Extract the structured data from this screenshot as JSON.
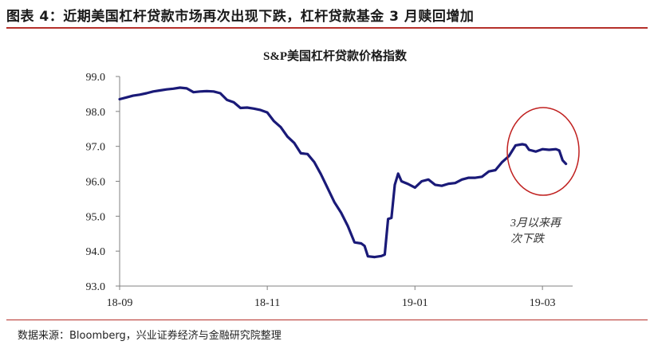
{
  "figure_title": "图表 4：近期美国杠杆贷款市场再次出现下跌，杠杆贷款基金 3 月赎回增加",
  "source_note": "数据来源：Bloomberg，兴业证券经济与金融研究院整理",
  "colors": {
    "line": "#1a1a78",
    "highlight": "#c0201f",
    "rule": "#b5302a",
    "axis": "#808080"
  },
  "chart_data": {
    "type": "line",
    "title": "S&P美国杠杆贷款价格指数",
    "xlabel": "",
    "ylabel": "",
    "ylim": [
      93.0,
      99.0
    ],
    "yticks": [
      "93.0",
      "94.0",
      "95.0",
      "96.0",
      "97.0",
      "98.0",
      "99.0"
    ],
    "xticks": [
      "18-09",
      "18-11",
      "19-01",
      "19-03"
    ],
    "grid": false,
    "series": [
      {
        "values": [
          [
            0,
            98.35
          ],
          [
            2,
            98.4
          ],
          [
            4,
            98.45
          ],
          [
            6,
            98.48
          ],
          [
            8,
            98.52
          ],
          [
            10,
            98.57
          ],
          [
            12,
            98.6
          ],
          [
            14,
            98.63
          ],
          [
            16,
            98.65
          ],
          [
            18,
            98.68
          ],
          [
            20,
            98.66
          ],
          [
            22,
            98.55
          ],
          [
            24,
            98.57
          ],
          [
            26,
            98.58
          ],
          [
            28,
            98.57
          ],
          [
            30,
            98.52
          ],
          [
            32,
            98.33
          ],
          [
            34,
            98.26
          ],
          [
            36,
            98.1
          ],
          [
            38,
            98.11
          ],
          [
            40,
            98.08
          ],
          [
            42,
            98.04
          ],
          [
            44,
            97.97
          ],
          [
            46,
            97.72
          ],
          [
            48,
            97.55
          ],
          [
            50,
            97.28
          ],
          [
            52,
            97.1
          ],
          [
            54,
            96.8
          ],
          [
            56,
            96.78
          ],
          [
            58,
            96.55
          ],
          [
            60,
            96.2
          ],
          [
            62,
            95.8
          ],
          [
            64,
            95.4
          ],
          [
            66,
            95.1
          ],
          [
            68,
            94.72
          ],
          [
            70,
            94.25
          ],
          [
            72,
            94.22
          ],
          [
            73,
            94.15
          ],
          [
            74,
            93.85
          ],
          [
            76,
            93.83
          ],
          [
            78,
            93.86
          ],
          [
            79,
            93.9
          ],
          [
            80,
            94.92
          ],
          [
            81,
            94.95
          ],
          [
            82,
            95.9
          ],
          [
            83,
            96.22
          ],
          [
            84,
            96.0
          ],
          [
            86,
            95.92
          ],
          [
            88,
            95.82
          ],
          [
            90,
            96.0
          ],
          [
            92,
            96.05
          ],
          [
            94,
            95.9
          ],
          [
            96,
            95.87
          ],
          [
            98,
            95.93
          ],
          [
            100,
            95.95
          ],
          [
            102,
            96.05
          ],
          [
            104,
            96.1
          ],
          [
            106,
            96.1
          ],
          [
            108,
            96.13
          ],
          [
            110,
            96.28
          ],
          [
            112,
            96.32
          ],
          [
            114,
            96.55
          ],
          [
            116,
            96.72
          ],
          [
            118,
            97.03
          ],
          [
            120,
            97.06
          ],
          [
            121,
            97.04
          ],
          [
            122,
            96.9
          ],
          [
            124,
            96.85
          ],
          [
            126,
            96.92
          ],
          [
            128,
            96.9
          ],
          [
            130,
            96.92
          ],
          [
            131,
            96.88
          ],
          [
            132,
            96.6
          ],
          [
            133,
            96.5
          ]
        ]
      }
    ],
    "annotation": {
      "text_lines": [
        "3月以来再",
        "次下跌"
      ]
    }
  }
}
